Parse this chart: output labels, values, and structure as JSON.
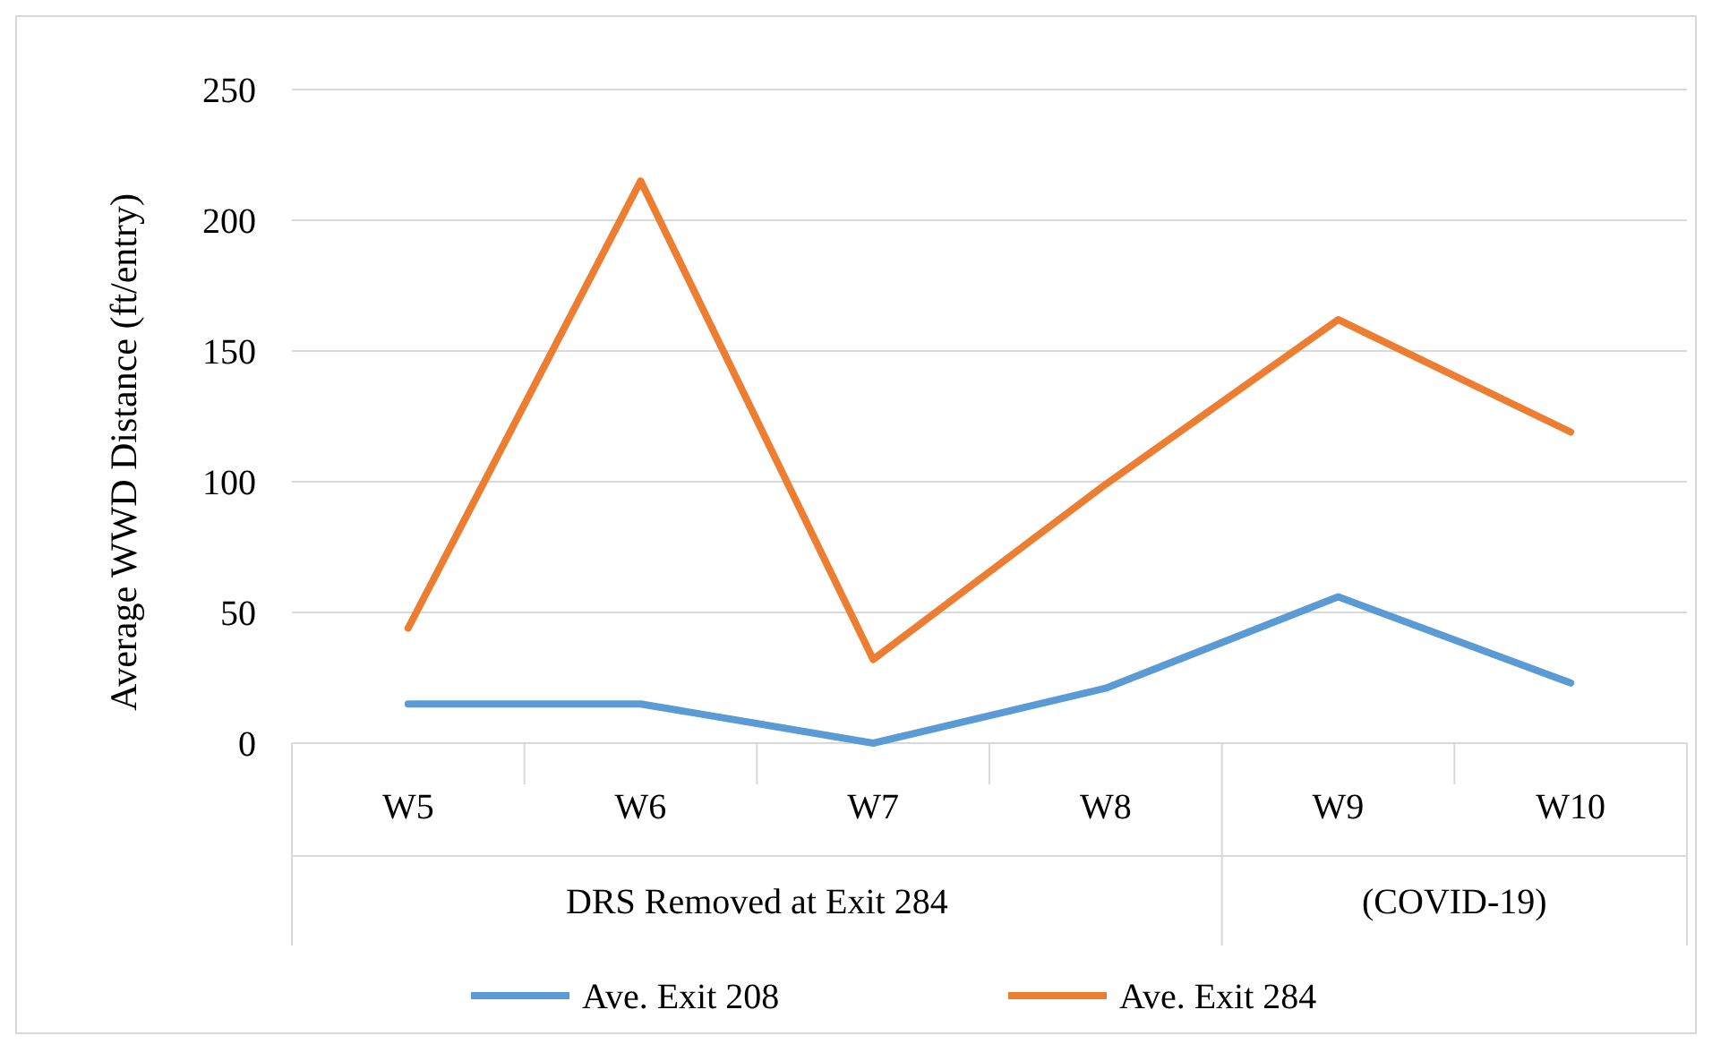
{
  "chart_data": {
    "type": "line",
    "ylabel": "Average WWD Distance (ft/entry)",
    "categories": [
      "W5",
      "W6",
      "W7",
      "W8",
      "W9",
      "W10"
    ],
    "series": [
      {
        "name": "Ave. Exit 208",
        "color": "#5b9bd5",
        "values": [
          15,
          15,
          0,
          21,
          56,
          23
        ]
      },
      {
        "name": "Ave. Exit 284",
        "color": "#ed7d31",
        "values": [
          44,
          215,
          32,
          99,
          162,
          119
        ]
      }
    ],
    "ylim": [
      0,
      250
    ],
    "yticks": [
      0,
      50,
      100,
      150,
      200,
      250
    ],
    "grid": "y",
    "legend": "bottom",
    "marker": "none",
    "line_style": "solid",
    "annotations": [
      "DRS Removed at Exit 284",
      "(COVID-19)"
    ]
  }
}
